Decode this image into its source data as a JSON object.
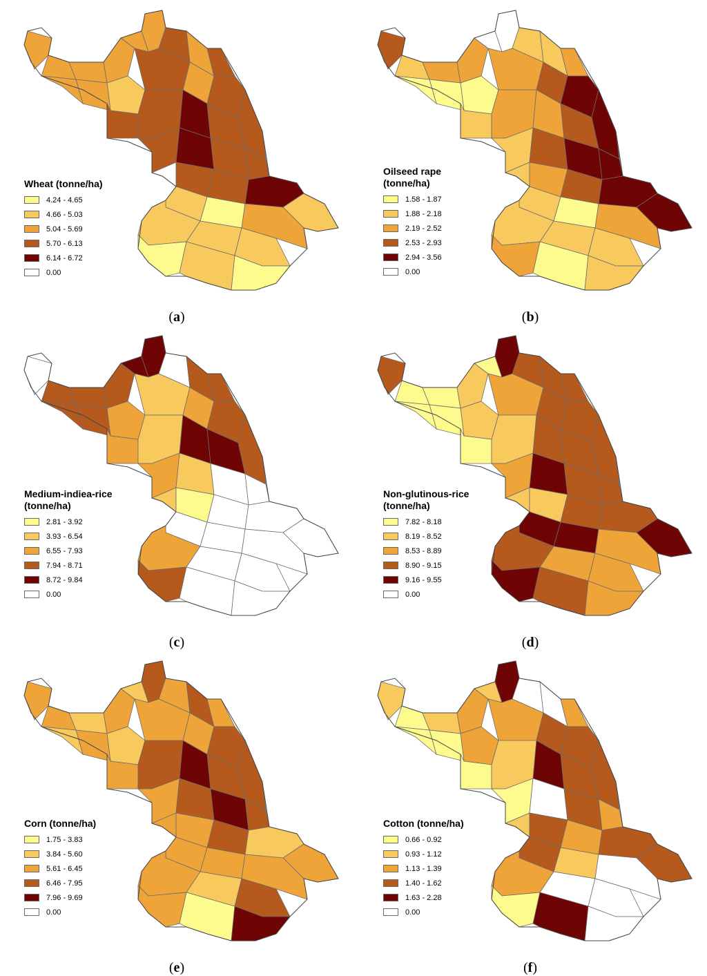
{
  "colors": {
    "c1": "#fdfa8e",
    "c2": "#f8c95d",
    "c3": "#efa43a",
    "c4": "#b5591c",
    "c5": "#6e0404",
    "c0": "#ffffff",
    "outline": "#6b6b6b"
  },
  "panels": [
    {
      "id": "a",
      "caption": "a",
      "legend_title": [
        "Wheat (tonne/ha)"
      ],
      "classes": [
        "4.24 - 4.65",
        "4.66 - 5.03",
        "5.04 - 5.69",
        "5.70 - 6.13",
        "6.14 - 6.72",
        "0.00"
      ]
    },
    {
      "id": "b",
      "caption": "b",
      "legend_title": [
        "Oilseed rape",
        "(tonne/ha)"
      ],
      "classes": [
        "1.58 - 1.87",
        "1.88 - 2.18",
        "2.19 - 2.52",
        "2.53 - 2.93",
        "2.94 - 3.56",
        "0.00"
      ]
    },
    {
      "id": "c",
      "caption": "c",
      "legend_title": [
        "Medium-indiea-rice",
        "(tonne/ha)"
      ],
      "classes": [
        "2.81 - 3.92",
        "3.93 - 6.54",
        "6.55 - 7.93",
        "7.94 - 8.71",
        "8.72 - 9.84",
        "0.00"
      ]
    },
    {
      "id": "d",
      "caption": "d",
      "legend_title": [
        "Non-glutinous-rice",
        "(tonne/ha)"
      ],
      "classes": [
        "7.82 - 8.18",
        "8.19 - 8.52",
        "8.53 - 8.89",
        "8.90 - 9.15",
        "9.16 - 9.55",
        "0.00"
      ]
    },
    {
      "id": "e",
      "caption": "e",
      "legend_title": [
        "Corn (tonne/ha)"
      ],
      "classes": [
        "1.75 - 3.83",
        "3.84 - 5.60",
        "5.61 - 6.45",
        "6.46 - 7.95",
        "7.96 - 9.69",
        "0.00"
      ]
    },
    {
      "id": "f",
      "caption": "f",
      "legend_title": [
        "Cotton (tonne/ha)"
      ],
      "classes": [
        "0.66 - 0.92",
        "0.93 - 1.12",
        "1.13 - 1.39",
        "1.40 - 1.62",
        "1.63 - 2.28",
        "0.00"
      ]
    }
  ]
}
